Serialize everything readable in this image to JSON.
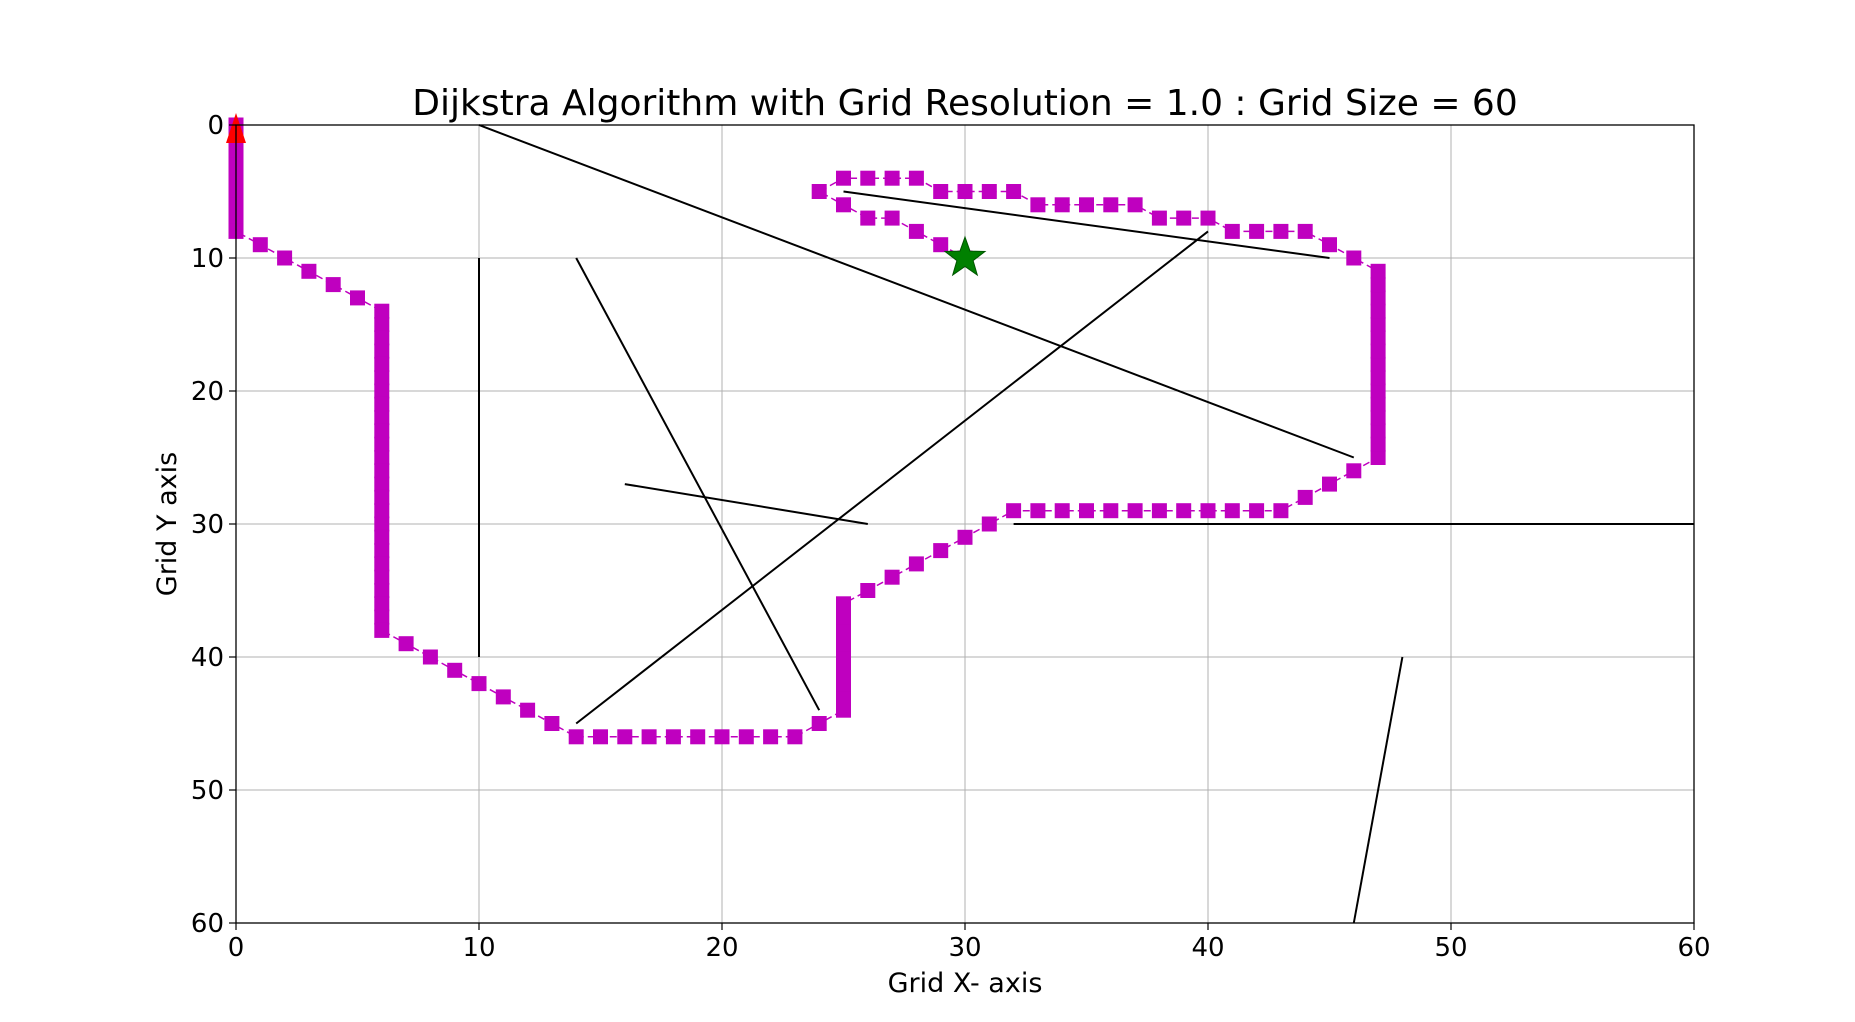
{
  "chart_data": {
    "type": "line",
    "title": "Dijkstra Algorithm with Grid Resolution = 1.0  :  Grid Size = 60",
    "xlabel": "Grid X- axis",
    "ylabel": "Grid Y axis",
    "xlim": [
      0,
      60
    ],
    "ylim": [
      60,
      0
    ],
    "y_axis_inverted": true,
    "grid": true,
    "xticks": [
      "0",
      "10",
      "20",
      "30",
      "40",
      "50",
      "60"
    ],
    "yticks": [
      "0",
      "10",
      "20",
      "30",
      "40",
      "50",
      "60"
    ],
    "colors": {
      "path": "#bf00bf",
      "obstacle": "#000000",
      "start": "#ff0000",
      "goal": "#008000",
      "grid": "#b0b0b0"
    },
    "obstacles": [
      {
        "x1": 10,
        "y1": 0,
        "x2": 46,
        "y2": 25
      },
      {
        "x1": 10,
        "y1": 10,
        "x2": 10,
        "y2": 40
      },
      {
        "x1": 14,
        "y1": 10,
        "x2": 24,
        "y2": 44
      },
      {
        "x1": 16,
        "y1": 27,
        "x2": 26,
        "y2": 30
      },
      {
        "x1": 14,
        "y1": 45,
        "x2": 40,
        "y2": 8
      },
      {
        "x1": 25,
        "y1": 5,
        "x2": 45,
        "y2": 10
      },
      {
        "x1": 32,
        "y1": 30,
        "x2": 60,
        "y2": 30
      },
      {
        "x1": 48,
        "y1": 40,
        "x2": 46,
        "y2": 60
      }
    ],
    "path": [
      [
        0,
        0
      ],
      [
        0,
        1
      ],
      [
        0,
        2
      ],
      [
        0,
        3
      ],
      [
        0,
        4
      ],
      [
        0,
        5
      ],
      [
        0,
        6
      ],
      [
        0,
        7
      ],
      [
        0,
        8
      ],
      [
        1,
        9
      ],
      [
        2,
        10
      ],
      [
        3,
        11
      ],
      [
        4,
        12
      ],
      [
        5,
        13
      ],
      [
        6,
        14
      ],
      [
        6,
        15
      ],
      [
        6,
        16
      ],
      [
        6,
        17
      ],
      [
        6,
        18
      ],
      [
        6,
        19
      ],
      [
        6,
        20
      ],
      [
        6,
        21
      ],
      [
        6,
        22
      ],
      [
        6,
        23
      ],
      [
        6,
        24
      ],
      [
        6,
        25
      ],
      [
        6,
        26
      ],
      [
        6,
        27
      ],
      [
        6,
        28
      ],
      [
        6,
        29
      ],
      [
        6,
        30
      ],
      [
        6,
        31
      ],
      [
        6,
        32
      ],
      [
        6,
        33
      ],
      [
        6,
        34
      ],
      [
        6,
        35
      ],
      [
        6,
        36
      ],
      [
        6,
        37
      ],
      [
        6,
        38
      ],
      [
        7,
        39
      ],
      [
        8,
        40
      ],
      [
        9,
        41
      ],
      [
        10,
        42
      ],
      [
        11,
        43
      ],
      [
        12,
        44
      ],
      [
        13,
        45
      ],
      [
        14,
        46
      ],
      [
        15,
        46
      ],
      [
        16,
        46
      ],
      [
        17,
        46
      ],
      [
        18,
        46
      ],
      [
        19,
        46
      ],
      [
        20,
        46
      ],
      [
        21,
        46
      ],
      [
        22,
        46
      ],
      [
        23,
        46
      ],
      [
        24,
        45
      ],
      [
        25,
        44
      ],
      [
        25,
        43
      ],
      [
        25,
        42
      ],
      [
        25,
        41
      ],
      [
        25,
        40
      ],
      [
        25,
        39
      ],
      [
        25,
        38
      ],
      [
        25,
        37
      ],
      [
        25,
        36
      ],
      [
        26,
        35
      ],
      [
        27,
        34
      ],
      [
        28,
        33
      ],
      [
        29,
        32
      ],
      [
        30,
        31
      ],
      [
        31,
        30
      ],
      [
        32,
        29
      ],
      [
        33,
        29
      ],
      [
        34,
        29
      ],
      [
        35,
        29
      ],
      [
        36,
        29
      ],
      [
        37,
        29
      ],
      [
        38,
        29
      ],
      [
        39,
        29
      ],
      [
        40,
        29
      ],
      [
        41,
        29
      ],
      [
        42,
        29
      ],
      [
        43,
        29
      ],
      [
        44,
        28
      ],
      [
        45,
        27
      ],
      [
        46,
        26
      ],
      [
        47,
        25
      ],
      [
        47,
        24
      ],
      [
        47,
        23
      ],
      [
        47,
        22
      ],
      [
        47,
        21
      ],
      [
        47,
        20
      ],
      [
        47,
        19
      ],
      [
        47,
        18
      ],
      [
        47,
        17
      ],
      [
        47,
        16
      ],
      [
        47,
        15
      ],
      [
        47,
        14
      ],
      [
        47,
        13
      ],
      [
        47,
        12
      ],
      [
        47,
        11
      ],
      [
        46,
        10
      ],
      [
        45,
        9
      ],
      [
        44,
        8
      ],
      [
        43,
        8
      ],
      [
        42,
        8
      ],
      [
        41,
        8
      ],
      [
        40,
        7
      ],
      [
        39,
        7
      ],
      [
        38,
        7
      ],
      [
        37,
        6
      ],
      [
        36,
        6
      ],
      [
        35,
        6
      ],
      [
        34,
        6
      ],
      [
        33,
        6
      ],
      [
        32,
        5
      ],
      [
        31,
        5
      ],
      [
        30,
        5
      ],
      [
        29,
        5
      ],
      [
        28,
        4
      ],
      [
        27,
        4
      ],
      [
        26,
        4
      ],
      [
        25,
        4
      ],
      [
        24,
        5
      ],
      [
        25,
        6
      ],
      [
        26,
        7
      ],
      [
        27,
        7
      ],
      [
        28,
        8
      ],
      [
        29,
        9
      ],
      [
        30,
        10
      ]
    ],
    "start": [
      0,
      0
    ],
    "goal": [
      30,
      10
    ]
  }
}
